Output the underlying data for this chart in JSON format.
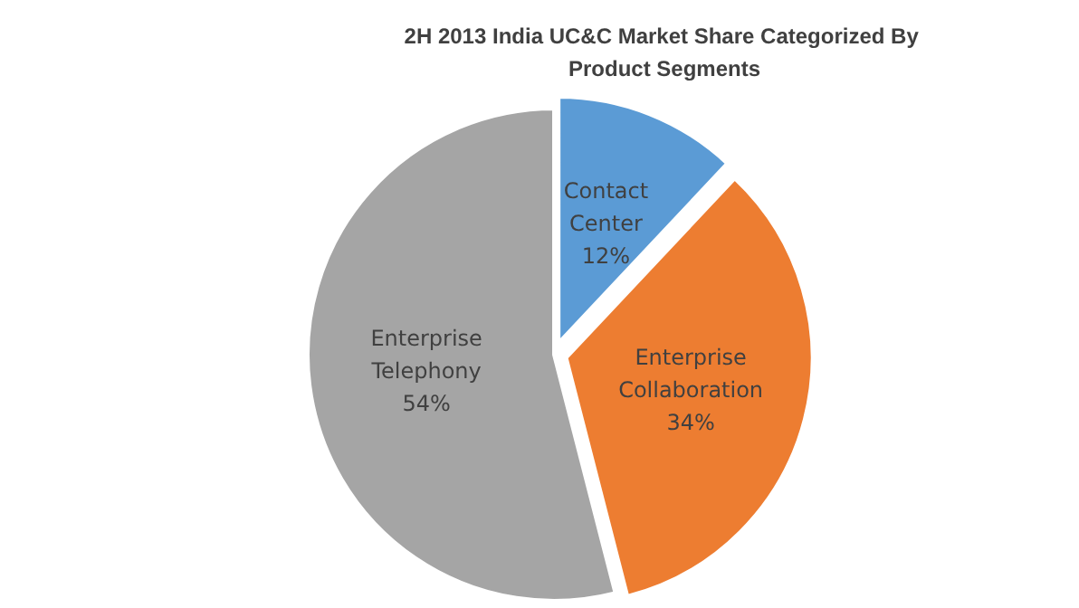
{
  "chart_data": {
    "type": "pie",
    "title": "2H 2013 India UC&C Market Share Categorized By Product Segments",
    "categories": [
      "Contact Center",
      "Enterprise Collaboration",
      "Enterprise Telephony"
    ],
    "values": [
      12,
      34,
      54
    ],
    "value_labels": [
      "12%",
      "34%",
      "54%"
    ],
    "colors": [
      "#5b9bd5",
      "#ed7d31",
      "#a5a5a5"
    ],
    "legend": false
  }
}
